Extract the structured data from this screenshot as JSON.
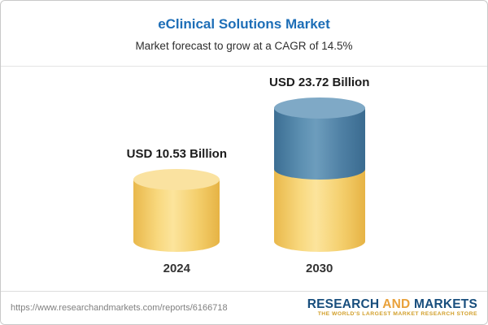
{
  "header": {
    "title": "eClinical Solutions Market",
    "subtitle": "Market forecast to grow at a CAGR of 14.5%"
  },
  "chart_data": {
    "type": "bar",
    "title": "eClinical Solutions Market",
    "subtitle": "Market forecast to grow at a CAGR of 14.5%",
    "cagr": "14.5%",
    "unit": "USD Billion",
    "categories": [
      "2024",
      "2030"
    ],
    "values": [
      10.53,
      23.72
    ],
    "labels": [
      "USD 10.53 Billion",
      "USD 23.72 Billion"
    ],
    "ylim": [
      0,
      25
    ],
    "grid": false,
    "legend": "none",
    "colors": {
      "bar_2024": "#f6d36e",
      "bar_2030_bottom": "#f6d36e",
      "bar_2030_top": "#4c80a6"
    }
  },
  "footer": {
    "url": "https://www.researchandmarkets.com/reports/6166718",
    "logo": {
      "part1": "RESEARCH",
      "part2": "AND",
      "part3": "MARKETS",
      "tagline": "THE WORLD'S LARGEST MARKET RESEARCH STORE"
    }
  }
}
